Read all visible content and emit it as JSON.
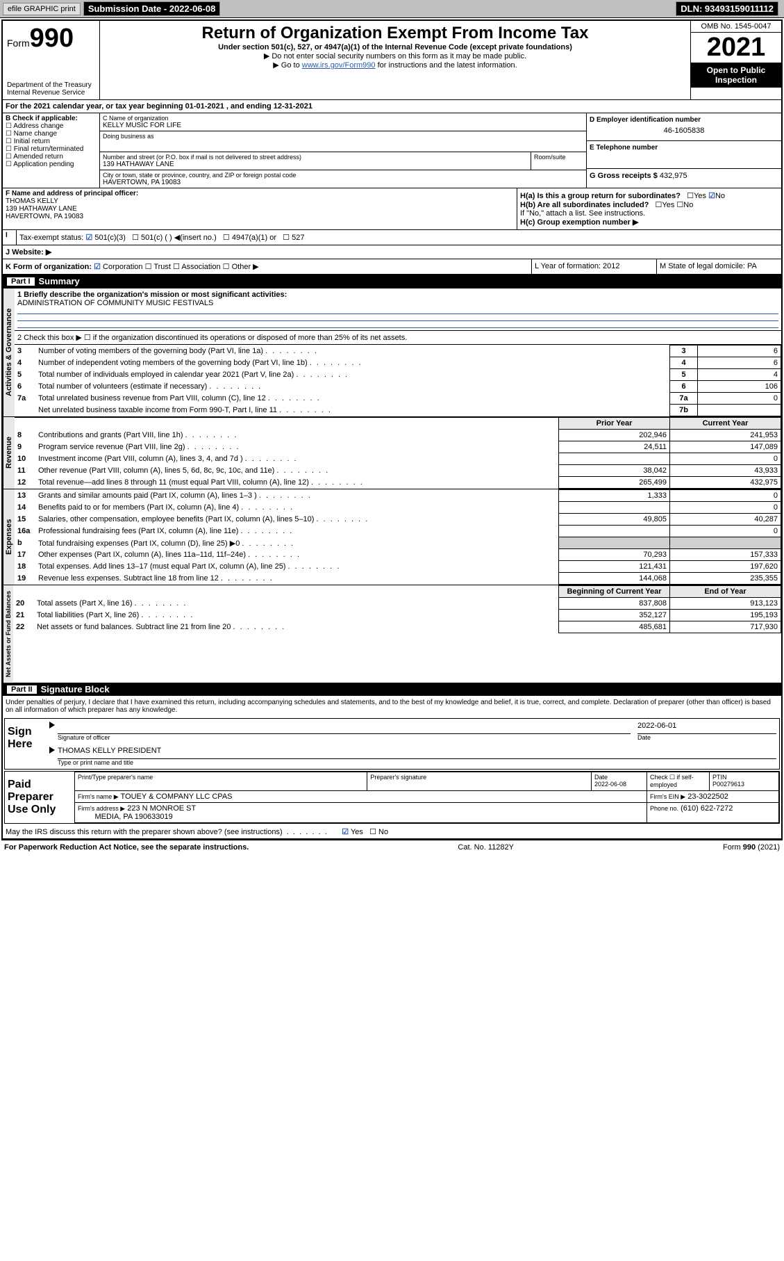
{
  "topbar": {
    "efile": "efile GRAPHIC print",
    "subdate_label": "Submission Date - 2022-06-08",
    "dln": "DLN: 93493159011112"
  },
  "header": {
    "form_word": "Form",
    "form_num": "990",
    "dept": "Department of the Treasury\nInternal Revenue Service",
    "title": "Return of Organization Exempt From Income Tax",
    "sub1": "Under section 501(c), 527, or 4947(a)(1) of the Internal Revenue Code (except private foundations)",
    "sub2": "▶ Do not enter social security numbers on this form as it may be made public.",
    "sub3_pre": "▶ Go to ",
    "sub3_link": "www.irs.gov/Form990",
    "sub3_post": " for instructions and the latest information.",
    "omb": "OMB No. 1545-0047",
    "year": "2021",
    "inspect": "Open to Public Inspection"
  },
  "period": "For the 2021 calendar year, or tax year beginning 01-01-2021    , and ending 12-31-2021",
  "sectionB": {
    "label": "B Check if applicable:",
    "opts": [
      "Address change",
      "Name change",
      "Initial return",
      "Final return/terminated",
      "Amended return",
      "Application pending"
    ]
  },
  "sectionC": {
    "name_label": "C Name of organization",
    "name": "KELLY MUSIC FOR LIFE",
    "dba_label": "Doing business as",
    "addr_label": "Number and street (or P.O. box if mail is not delivered to street address)",
    "room_label": "Room/suite",
    "addr": "139 HATHAWAY LANE",
    "city_label": "City or town, state or province, country, and ZIP or foreign postal code",
    "city": "HAVERTOWN, PA  19083"
  },
  "sectionD": {
    "label": "D Employer identification number",
    "val": "46-1605838"
  },
  "sectionE": {
    "label": "E Telephone number"
  },
  "sectionG": {
    "label": "G Gross receipts $",
    "val": "432,975"
  },
  "sectionF": {
    "label": "F  Name and address of principal officer:",
    "name": "THOMAS KELLY",
    "addr": "139 HATHAWAY LANE",
    "city": "HAVERTOWN, PA  19083"
  },
  "sectionH": {
    "a": "H(a)  Is this a group return for subordinates?",
    "b": "H(b)  Are all subordinates included?",
    "bnote": "If \"No,\" attach a list. See instructions.",
    "c": "H(c)  Group exemption number ▶"
  },
  "sectionI": {
    "label": "Tax-exempt status:",
    "opts": [
      "501(c)(3)",
      "501(c) (  ) ◀(insert no.)",
      "4947(a)(1) or",
      "527"
    ]
  },
  "sectionJ": "J    Website: ▶",
  "sectionK": {
    "label": "K Form of organization:",
    "opts": [
      "Corporation",
      "Trust",
      "Association",
      "Other ▶"
    ]
  },
  "sectionL": "L Year of formation: 2012",
  "sectionM": "M State of legal domicile: PA",
  "part1": {
    "num": "Part I",
    "title": "Summary"
  },
  "mission_label": "1  Briefly describe the organization's mission or most significant activities:",
  "mission": "ADMINISTRATION OF COMMUNITY MUSIC FESTIVALS",
  "line2": "2   Check this box ▶ ☐ if the organization discontinued its operations or disposed of more than 25% of its net assets.",
  "gov_rows": [
    {
      "n": "3",
      "txt": "Number of voting members of the governing body (Part VI, line 1a)",
      "box": "3",
      "val": "6"
    },
    {
      "n": "4",
      "txt": "Number of independent voting members of the governing body (Part VI, line 1b)",
      "box": "4",
      "val": "6"
    },
    {
      "n": "5",
      "txt": "Total number of individuals employed in calendar year 2021 (Part V, line 2a)",
      "box": "5",
      "val": "4"
    },
    {
      "n": "6",
      "txt": "Total number of volunteers (estimate if necessary)",
      "box": "6",
      "val": "106"
    },
    {
      "n": "7a",
      "txt": "Total unrelated business revenue from Part VIII, column (C), line 12",
      "box": "7a",
      "val": "0"
    },
    {
      "n": "",
      "txt": "Net unrelated business taxable income from Form 990-T, Part I, line 11",
      "box": "7b",
      "val": ""
    }
  ],
  "col_hdrs": {
    "prior": "Prior Year",
    "current": "Current Year"
  },
  "rev_rows": [
    {
      "n": "8",
      "txt": "Contributions and grants (Part VIII, line 1h)",
      "p": "202,946",
      "c": "241,953"
    },
    {
      "n": "9",
      "txt": "Program service revenue (Part VIII, line 2g)",
      "p": "24,511",
      "c": "147,089"
    },
    {
      "n": "10",
      "txt": "Investment income (Part VIII, column (A), lines 3, 4, and 7d )",
      "p": "",
      "c": "0"
    },
    {
      "n": "11",
      "txt": "Other revenue (Part VIII, column (A), lines 5, 6d, 8c, 9c, 10c, and 11e)",
      "p": "38,042",
      "c": "43,933"
    },
    {
      "n": "12",
      "txt": "Total revenue—add lines 8 through 11 (must equal Part VIII, column (A), line 12)",
      "p": "265,499",
      "c": "432,975"
    }
  ],
  "exp_rows": [
    {
      "n": "13",
      "txt": "Grants and similar amounts paid (Part IX, column (A), lines 1–3 )",
      "p": "1,333",
      "c": "0"
    },
    {
      "n": "14",
      "txt": "Benefits paid to or for members (Part IX, column (A), line 4)",
      "p": "",
      "c": "0"
    },
    {
      "n": "15",
      "txt": "Salaries, other compensation, employee benefits (Part IX, column (A), lines 5–10)",
      "p": "49,805",
      "c": "40,287"
    },
    {
      "n": "16a",
      "txt": "Professional fundraising fees (Part IX, column (A), line 11e)",
      "p": "",
      "c": "0"
    },
    {
      "n": "b",
      "txt": "Total fundraising expenses (Part IX, column (D), line 25) ▶0",
      "p": "SHADE",
      "c": "SHADE"
    },
    {
      "n": "17",
      "txt": "Other expenses (Part IX, column (A), lines 11a–11d, 11f–24e)",
      "p": "70,293",
      "c": "157,333"
    },
    {
      "n": "18",
      "txt": "Total expenses. Add lines 13–17 (must equal Part IX, column (A), line 25)",
      "p": "121,431",
      "c": "197,620"
    },
    {
      "n": "19",
      "txt": "Revenue less expenses. Subtract line 18 from line 12",
      "p": "144,068",
      "c": "235,355"
    }
  ],
  "net_hdrs": {
    "begin": "Beginning of Current Year",
    "end": "End of Year"
  },
  "net_rows": [
    {
      "n": "20",
      "txt": "Total assets (Part X, line 16)",
      "p": "837,808",
      "c": "913,123"
    },
    {
      "n": "21",
      "txt": "Total liabilities (Part X, line 26)",
      "p": "352,127",
      "c": "195,193"
    },
    {
      "n": "22",
      "txt": "Net assets or fund balances. Subtract line 21 from line 20",
      "p": "485,681",
      "c": "717,930"
    }
  ],
  "part2": {
    "num": "Part II",
    "title": "Signature Block"
  },
  "declaration": "Under penalties of perjury, I declare that I have examined this return, including accompanying schedules and statements, and to the best of my knowledge and belief, it is true, correct, and complete. Declaration of preparer (other than officer) is based on all information of which preparer has any knowledge.",
  "sign": {
    "here": "Sign Here",
    "sigoff": "Signature of officer",
    "date": "Date",
    "sigdate": "2022-06-01",
    "name": "THOMAS KELLY PRESIDENT",
    "namelabel": "Type or print name and title"
  },
  "paid": {
    "label": "Paid Preparer Use Only",
    "pt_name_label": "Print/Type preparer's name",
    "sig_label": "Preparer's signature",
    "date_label": "Date",
    "date": "2022-06-08",
    "check_label": "Check ☐ if self-employed",
    "ptin_label": "PTIN",
    "ptin": "P00279613",
    "firm_name_label": "Firm's name    ▶",
    "firm_name": "TOUEY & COMPANY LLC CPAS",
    "firm_ein_label": "Firm's EIN ▶",
    "firm_ein": "23-3022502",
    "firm_addr_label": "Firm's address ▶",
    "firm_addr": "223 N MONROE ST",
    "firm_addr2": "MEDIA, PA  190633019",
    "phone_label": "Phone no.",
    "phone": "(610) 622-7272"
  },
  "discuss": "May the IRS discuss this return with the preparer shown above? (see instructions)",
  "footer": {
    "pra": "For Paperwork Reduction Act Notice, see the separate instructions.",
    "cat": "Cat. No. 11282Y",
    "form": "Form 990 (2021)"
  },
  "vtabs": {
    "gov": "Activities & Governance",
    "rev": "Revenue",
    "exp": "Expenses",
    "net": "Net Assets or Fund Balances"
  },
  "yn": {
    "yes": "Yes",
    "no": "No"
  }
}
